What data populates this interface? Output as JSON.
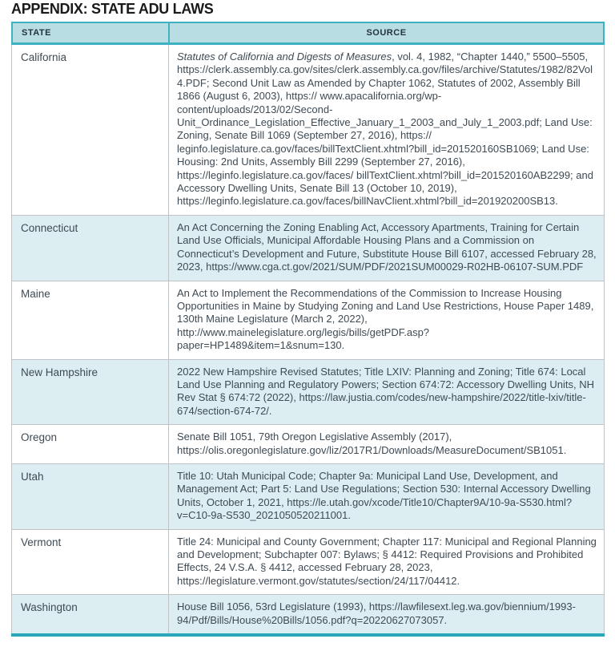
{
  "title": "APPENDIX: STATE ADU LAWS",
  "colors": {
    "accent_teal": "#3eb1c3",
    "header_bg": "#b8dde3",
    "alt_row_bg": "#ddeef2",
    "bottom_bar": "#2aa7bb",
    "row_border": "#bfc3c6",
    "body_text": "#3e4a54",
    "title_text": "#1a1a1a"
  },
  "table": {
    "columns": [
      "STATE",
      "SOURCE"
    ],
    "rows": [
      {
        "state": "California",
        "source_italic": "Statutes of California and Digests of Measures",
        "source_text": ", vol. 4, 1982, “Chapter 1440,” 5500–5505, https://clerk.assembly.ca.gov/sites/clerk.assembly.ca.gov/files/archive/Statutes/1982/82Vol4.PDF; Second Unit Law as Amended by Chapter 1062, Statutes of 2002, Assembly Bill 1866 (August 6, 2003), https:// www.apacalifornia.org/wp-content/uploads/2013/02/Second-Unit_Ordinance_Legislation_Effective_January_1_2003_and_July_1_2003.pdf; Land Use: Zoning, Senate Bill 1069 (September 27, 2016), https:// leginfo.legislature.ca.gov/faces/billTextClient.xhtml?bill_id=201520160SB1069; Land Use: Housing: 2nd Units, Assembly Bill 2299 (September 27, 2016), https://leginfo.legislature.ca.gov/faces/ billTextClient.xhtml?bill_id=201520160AB2299; and Accessory Dwelling Units, Senate Bill 13 (October 10, 2019), https://leginfo.legislature.ca.gov/faces/billNavClient.xhtml?bill_id=201920200SB13."
      },
      {
        "state": "Connecticut",
        "source_italic": "",
        "source_text": "An Act Concerning the Zoning Enabling Act, Accessory Apartments, Training for Certain Land Use Officials, Municipal Affordable Housing Plans and a Commission on Connecticut’s Development and Future, Substitute House Bill 6107, accessed February 28, 2023, https://www.cga.ct.gov/2021/SUM/PDF/2021SUM00029-R02HB-06107-SUM.PDF"
      },
      {
        "state": "Maine",
        "source_italic": "",
        "source_text": "An Act to Implement the Recommendations of the Commission to Increase Housing Opportunities in Maine by Studying Zoning and Land Use Restrictions, House Paper 1489, 130th Maine Legislature (March 2, 2022), http://www.mainelegislature.org/legis/bills/getPDF.asp?paper=HP1489&item=1&snum=130."
      },
      {
        "state": "New Hampshire",
        "source_italic": "",
        "source_text": "2022 New Hampshire Revised Statutes; Title LXIV: Planning and Zoning; Title 674: Local Land Use Planning and Regulatory Powers; Section 674:72: Accessory Dwelling Units, NH Rev Stat § 674:72 (2022), https://law.justia.com/codes/new-hampshire/2022/title-lxiv/title-674/section-674-72/."
      },
      {
        "state": "Oregon",
        "source_italic": "",
        "source_text": "Senate Bill 1051, 79th Oregon Legislative Assembly (2017), https://olis.oregonlegislature.gov/liz/2017R1/Downloads/MeasureDocument/SB1051."
      },
      {
        "state": "Utah",
        "source_italic": "",
        "source_text": "Title 10: Utah Municipal Code; Chapter 9a: Municipal Land Use, Development, and Management Act; Part 5: Land Use Regulations; Section 530: Internal Accessory Dwelling Units, October 1, 2021, https://le.utah.gov/xcode/Title10/Chapter9A/10-9a-S530.html?v=C10-9a-S530_2021050520211001."
      },
      {
        "state": "Vermont",
        "source_italic": "",
        "source_text": "Title 24: Municipal and County Government; Chapter 117: Municipal and Regional Planning and Development; Subchapter 007: Bylaws; § 4412: Required Provisions and Prohibited Effects, 24 V.S.A. § 4412, accessed February 28, 2023, https://legislature.vermont.gov/statutes/section/24/117/04412."
      },
      {
        "state": "Washington",
        "source_italic": "",
        "source_text": "House Bill 1056, 53rd Legislature (1993), https://lawfilesext.leg.wa.gov/biennium/1993-94/Pdf/Bills/House%20Bills/1056.pdf?q=20220627073057."
      }
    ]
  }
}
